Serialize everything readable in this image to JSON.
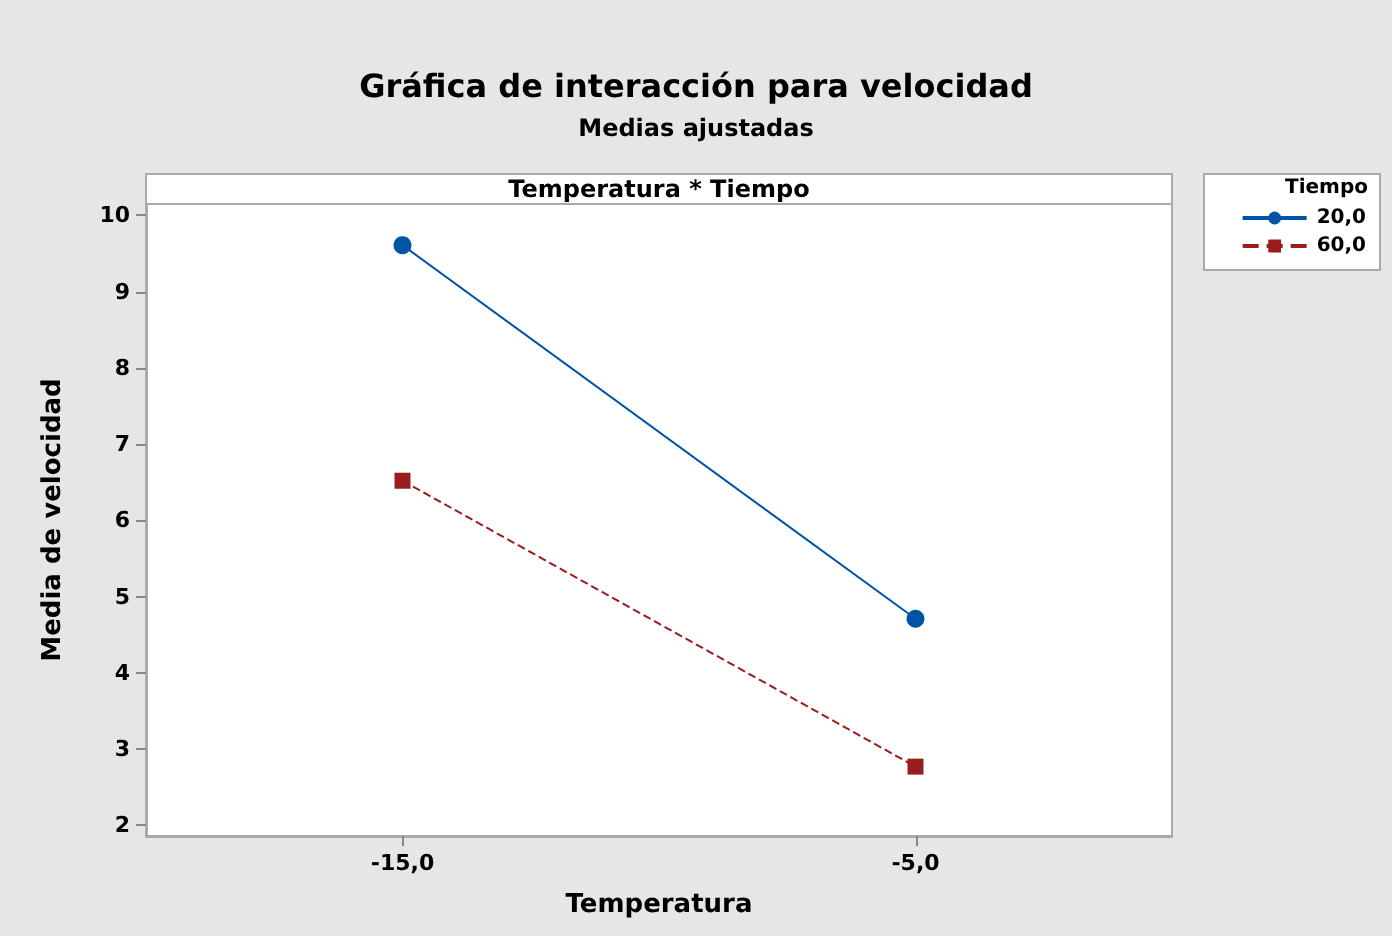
{
  "chart_data": {
    "type": "line",
    "title": "Gráfica de interacción para velocidad",
    "subtitle": "Medias ajustadas",
    "annotations": [
      "Temperatura * Tiempo"
    ],
    "xlabel": "Temperatura",
    "ylabel": "Media de velocidad",
    "legend_title": "Tiempo",
    "categories": [
      "-15,0",
      "-5,0"
    ],
    "series": [
      {
        "name": "20,0",
        "color": "#0054a6",
        "values": [
          9.61,
          4.71
        ],
        "marker": "circle",
        "line_style": "solid"
      },
      {
        "name": "60,0",
        "color": "#9b1c1c",
        "values": [
          6.52,
          2.77
        ],
        "marker": "square",
        "line_style": "dashed"
      }
    ],
    "ylim": [
      1.86,
      10.15
    ],
    "yticks": [
      2,
      3,
      4,
      5,
      6,
      7,
      8,
      9,
      10
    ],
    "grid": false,
    "legend": "top right"
  }
}
